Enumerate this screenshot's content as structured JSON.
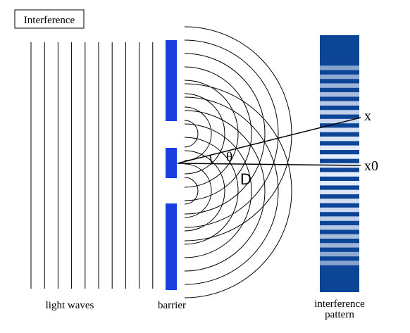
{
  "title": "Interference",
  "labels": {
    "light_waves": "light waves",
    "barrier": "barrier",
    "pattern_line1": "interference",
    "pattern_line2": "pattern",
    "x": "x",
    "x0": "x0",
    "theta": "θ",
    "D": "D"
  },
  "colors": {
    "barrier": "#1a3fe0",
    "pattern_dark": "#0d4596",
    "pattern_light": "#e8eefa",
    "line": "#000000"
  }
}
